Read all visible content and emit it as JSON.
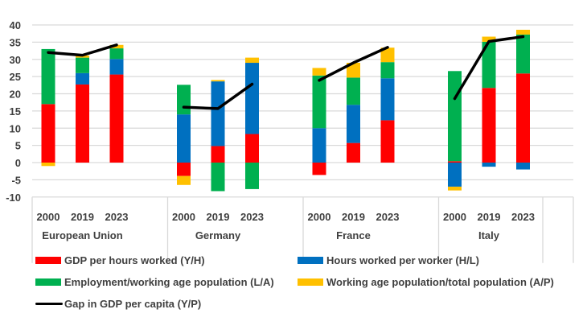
{
  "chart_data": {
    "type": "bar",
    "stacked": true,
    "title": "",
    "xlabel": "",
    "ylabel": "",
    "ylim": [
      -10,
      40
    ],
    "yticks": [
      "40",
      "35",
      "30",
      "25",
      "20",
      "15",
      "10",
      "5",
      "0",
      "-5",
      "-10"
    ],
    "ytick_values": [
      40,
      35,
      30,
      25,
      20,
      15,
      10,
      5,
      0,
      -5,
      -10
    ],
    "grid": true,
    "legend_position": "bottom",
    "groups": [
      "European Union",
      "Germany",
      "France",
      "Italy"
    ],
    "years": [
      "2000",
      "2019",
      "2023"
    ],
    "categories": [
      "EU 2000",
      "EU 2019",
      "EU 2023",
      "DE 2000",
      "DE 2019",
      "DE 2023",
      "FR 2000",
      "FR 2019",
      "FR 2023",
      "IT 2000",
      "IT 2019",
      "IT 2023"
    ],
    "series": [
      {
        "name": "GDP per hours worked (Y/H)",
        "color": "#ff0000",
        "kind": "bar",
        "values": [
          17.0,
          22.7,
          25.6,
          -3.9,
          4.8,
          8.3,
          -3.6,
          5.7,
          12.3,
          0.4,
          21.7,
          25.9
        ]
      },
      {
        "name": "Hours worked per worker (H/L)",
        "color": "#0070c0",
        "kind": "bar",
        "values": [
          0.0,
          3.3,
          4.5,
          14.0,
          18.8,
          20.7,
          10.0,
          11.1,
          12.2,
          -7.0,
          -1.2,
          -2.0
        ]
      },
      {
        "name": "Employment/working age population (L/A)",
        "color": "#00b050",
        "kind": "bar",
        "values": [
          16.0,
          4.5,
          3.1,
          8.6,
          -8.3,
          -7.7,
          15.3,
          7.9,
          4.7,
          26.2,
          13.4,
          11.3
        ]
      },
      {
        "name": "Working age population/total population (A/P)",
        "color": "#ffc000",
        "kind": "bar",
        "values": [
          -1.0,
          0.6,
          1.0,
          -2.6,
          0.4,
          1.5,
          2.2,
          4.3,
          4.2,
          -1.1,
          1.5,
          1.4
        ]
      },
      {
        "name": "Gap in GDP per capita (Y/P)",
        "color": "#000000",
        "kind": "line",
        "values": [
          32.0,
          31.2,
          34.2,
          16.1,
          15.7,
          22.8,
          23.9,
          29.0,
          33.5,
          18.6,
          35.2,
          36.6
        ]
      }
    ]
  }
}
